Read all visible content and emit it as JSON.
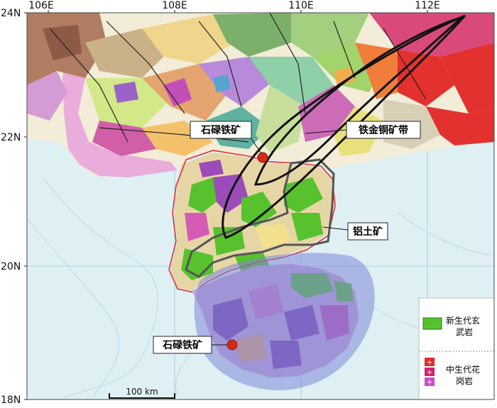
{
  "axes": {
    "lon_labels": [
      "106E",
      "108E",
      "110E",
      "112E"
    ],
    "lat_labels": [
      "24N",
      "22N",
      "20N",
      "18N"
    ]
  },
  "callouts": {
    "iron_mine_north": "石碌铁矿",
    "iron_copper_belt": "铁金铜矿带",
    "bauxite": "铝土矿",
    "iron_mine_south": "石碌铁矿"
  },
  "scale_bar": {
    "label": "100 km"
  },
  "legend": {
    "items": [
      {
        "label_line1": "新生代玄",
        "label_line2": "武岩",
        "color": "#57c22e"
      },
      {
        "label_line1": "中生代花",
        "label_line2": "岗岩",
        "colors": [
          "#e8262a",
          "#d81d6b",
          "#c94ac9"
        ]
      }
    ]
  },
  "colors": {
    "sea": "#dff0f5",
    "land_base": "#f2ecd8",
    "border_red": "#e03030",
    "belt_black": "#111111",
    "bauxite_outline": "#555555",
    "hainan_overlay": "#7d86d6",
    "mine_marker": "#d42a1a",
    "guangxi_pink": "#e9a1dc"
  }
}
